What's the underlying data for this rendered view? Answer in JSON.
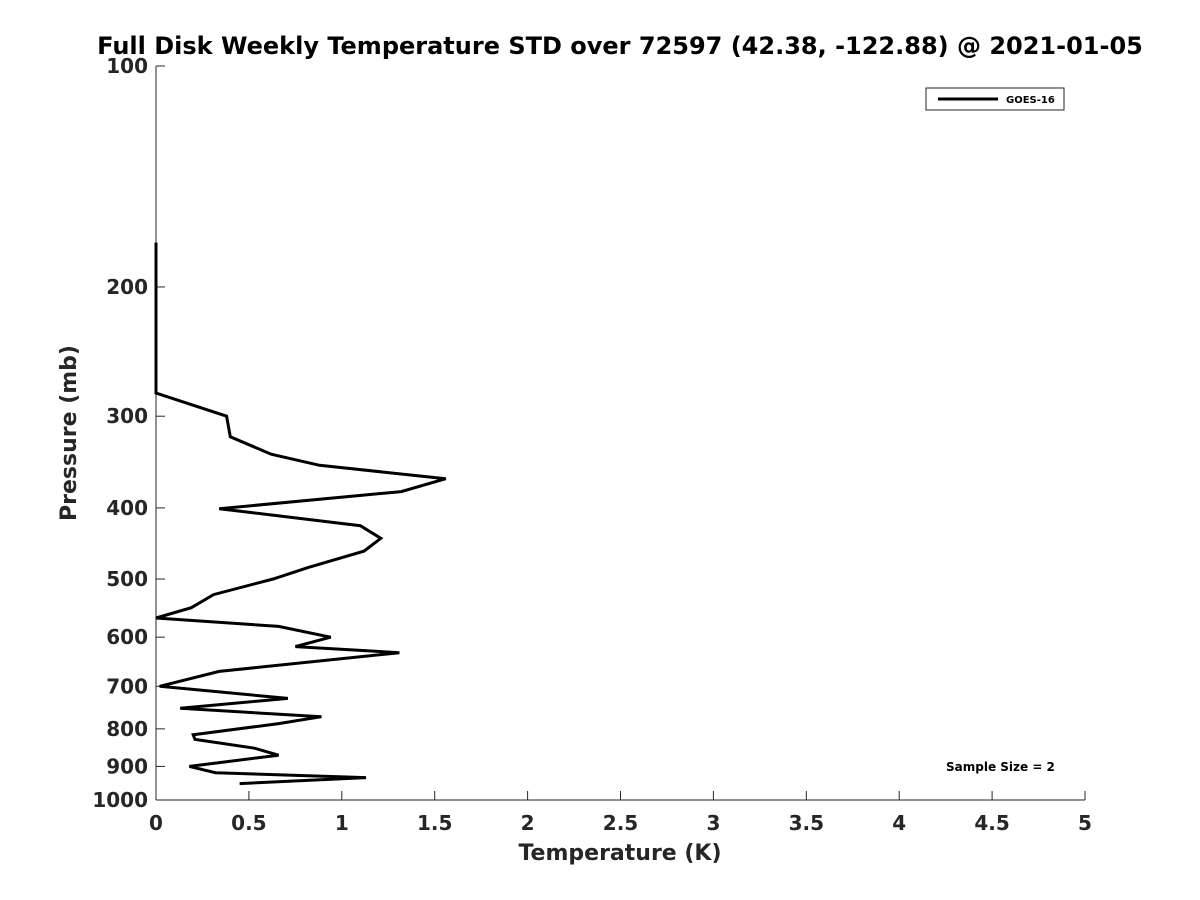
{
  "chart_data": {
    "type": "line",
    "title": "Full Disk Weekly Temperature STD over 72597 (42.38, -122.88) @ 2021-01-05",
    "xlabel": "Temperature (K)",
    "ylabel": "Pressure (mb)",
    "xlim": [
      0,
      5
    ],
    "ylim": [
      100,
      1000
    ],
    "yscale": "log",
    "y_reversed": true,
    "grid": false,
    "legend_position": "top-right",
    "xticks": [
      0,
      0.5,
      1,
      1.5,
      2,
      2.5,
      3,
      3.5,
      4,
      4.5,
      5
    ],
    "xtick_labels": [
      "0",
      "0.5",
      "1",
      "1.5",
      "2",
      "2.5",
      "3",
      "3.5",
      "4",
      "4.5",
      "5"
    ],
    "yticks": [
      100,
      200,
      300,
      400,
      500,
      600,
      700,
      800,
      900,
      1000
    ],
    "ytick_labels": [
      "100",
      "200",
      "300",
      "400",
      "500",
      "600",
      "700",
      "800",
      "900",
      "1000"
    ],
    "series": [
      {
        "name": "GOES-16",
        "color": "#000000",
        "x": [
          0,
          0,
          0,
          0.38,
          0.4,
          0.62,
          0.88,
          1.56,
          1.32,
          0.34,
          1.1,
          1.21,
          1.12,
          0.82,
          0.63,
          0.31,
          0.19,
          0,
          0.66,
          0.94,
          0.75,
          1.31,
          0.34,
          0.02,
          0.71,
          0.13,
          0.89,
          0.66,
          0.2,
          0.21,
          0.53,
          0.66,
          0.18,
          0.32,
          1.13,
          0.45
        ],
        "y": [
          174,
          200,
          279,
          300,
          320,
          338,
          350,
          365,
          380,
          401,
          423,
          440,
          458,
          482,
          500,
          525,
          547,
          565,
          580,
          600,
          618,
          630,
          668,
          700,
          727,
          750,
          770,
          787,
          815,
          827,
          850,
          869,
          900,
          918,
          932,
          950
        ]
      }
    ],
    "annotations": [
      "Sample Size = 2"
    ]
  }
}
